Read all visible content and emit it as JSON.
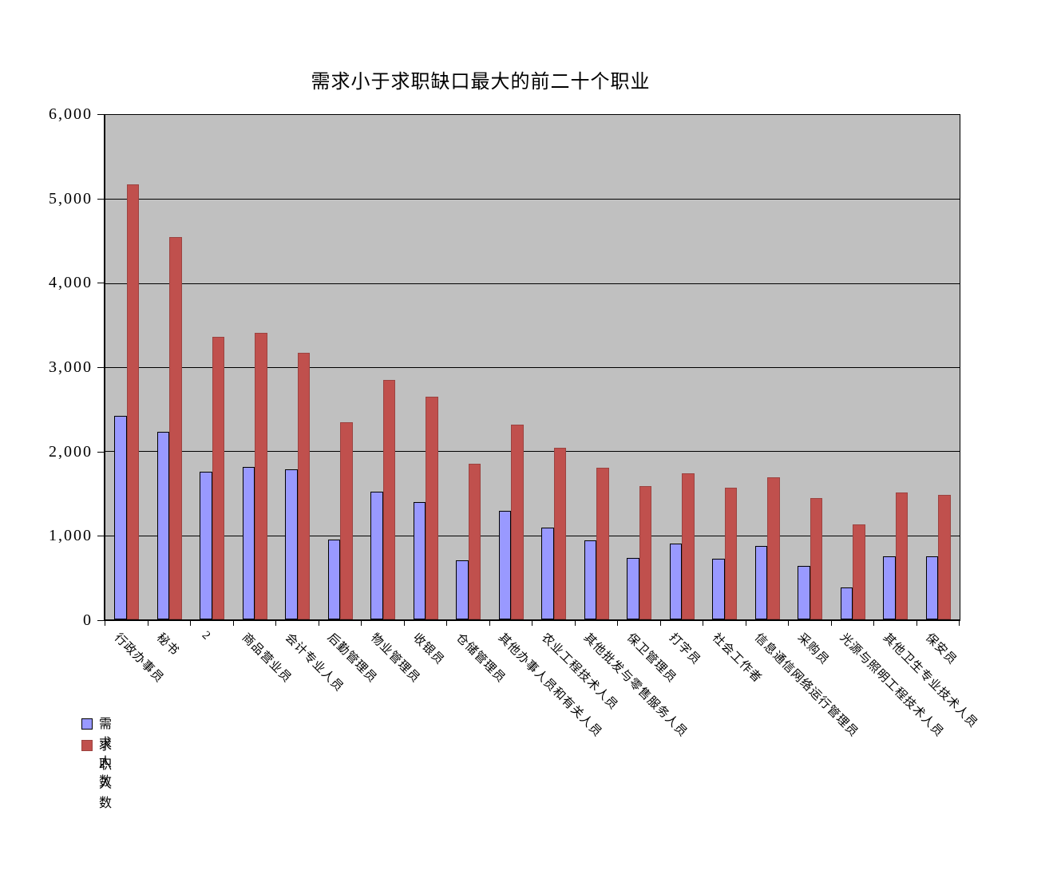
{
  "title": "需求小于求职缺口最大的前二十个职业",
  "colors": {
    "demand_fill": "#9999ff",
    "demand_border": "#000000",
    "seek_fill": "#c0504d",
    "seek_border": "#9c4340",
    "plot_background": "#c0c0c0",
    "gridline": "#000000"
  },
  "y_axis": {
    "tick_labels": [
      "6,000",
      "5,000",
      "4,000",
      "3,000",
      "2,000",
      "1,000",
      "0"
    ],
    "min": 0,
    "max": 6000,
    "step": 1000
  },
  "legend": {
    "demand_label": "需求人数",
    "seek_label": "求职人数"
  },
  "chart_data": {
    "type": "bar",
    "title": "需求小于求职缺口最大的前二十个职业",
    "categories": [
      "行政办事员",
      "秘书",
      "2",
      "商品营业员",
      "会计专业人员",
      "后勤管理员",
      "物业管理员",
      "收银员",
      "仓储管理员",
      "其他办事人员和有关人员",
      "农业工程技术人员",
      "其他批发与零售服务人员",
      "保卫管理员",
      "打字员",
      "社会工作者",
      "信息通信网络运行管理员",
      "采购员",
      "光源与照明工程技术人员",
      "其他卫生专业技术人员",
      "保安员"
    ],
    "series": [
      {
        "name": "需求人数",
        "values": [
          2420,
          2230,
          1760,
          1810,
          1790,
          950,
          1520,
          1400,
          700,
          1290,
          1090,
          940,
          730,
          900,
          720,
          870,
          640,
          380,
          750,
          750
        ]
      },
      {
        "name": "求职人数",
        "values": [
          5170,
          4550,
          3360,
          3410,
          3170,
          2350,
          2850,
          2650,
          1850,
          2320,
          2040,
          1800,
          1590,
          1740,
          1570,
          1690,
          1440,
          1130,
          1510,
          1480
        ]
      }
    ],
    "xlabel": "",
    "ylabel": "",
    "ylim": [
      0,
      6000
    ],
    "grid": true,
    "legend_position": "bottom-left"
  }
}
